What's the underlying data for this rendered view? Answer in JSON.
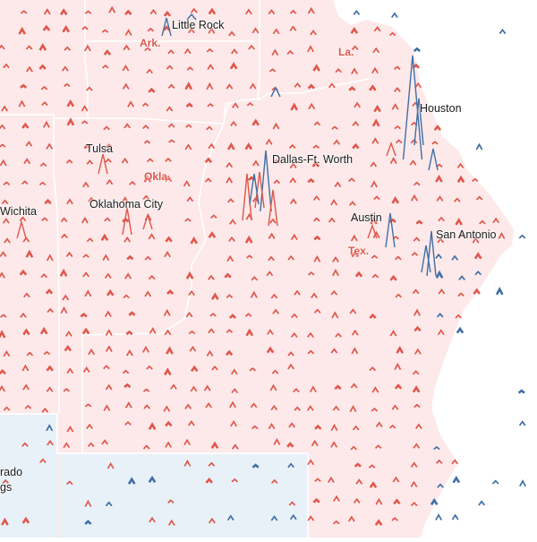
{
  "map": {
    "colors": {
      "background": "#ffffff",
      "republican_fill": "#fde9e9",
      "democratic_fill": "#e8f1f8",
      "republican_mark": "#e0564b",
      "democratic_mark": "#3f6fa6",
      "border": "#ffffff"
    },
    "state_labels": [
      "Ark.",
      "La.",
      "Okla.",
      "Tex."
    ],
    "cities": [
      "Little Rock",
      "Houston",
      "Tulsa",
      "Dallas-Ft. Worth",
      "Wichita",
      "Oklahoma City",
      "Austin",
      "San Antonio",
      "rado",
      "gs"
    ]
  }
}
